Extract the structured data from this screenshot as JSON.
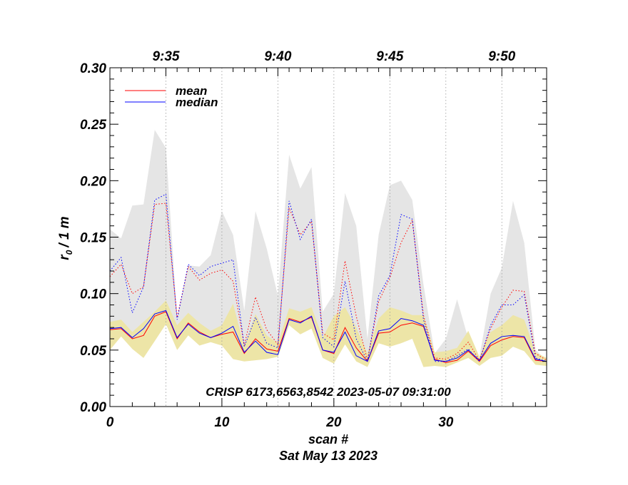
{
  "chart_data": {
    "type": "line",
    "xlabel": "scan #",
    "date_label": "Sat May 13 2023",
    "ylabel_main": "r",
    "ylabel_sub": "0",
    "ylabel_suffix": "/ 1 m",
    "annotation": "CRISP 6173,6563,8542 2023-05-07 09:31:00",
    "xlim": [
      0,
      39
    ],
    "ylim": [
      0,
      0.3
    ],
    "x_ticks": [
      {
        "value": 0,
        "label": "0"
      },
      {
        "value": 10,
        "label": "10"
      },
      {
        "value": 20,
        "label": "20"
      },
      {
        "value": 30,
        "label": "30"
      }
    ],
    "y_ticks": [
      {
        "value": 0.0,
        "label": "0.00"
      },
      {
        "value": 0.05,
        "label": "0.05"
      },
      {
        "value": 0.1,
        "label": "0.10"
      },
      {
        "value": 0.15,
        "label": "0.15"
      },
      {
        "value": 0.2,
        "label": "0.20"
      },
      {
        "value": 0.25,
        "label": "0.25"
      },
      {
        "value": 0.3,
        "label": "0.30"
      }
    ],
    "time_ticks": [
      {
        "value": 5,
        "label": "9:35"
      },
      {
        "value": 15,
        "label": "9:40"
      },
      {
        "value": 25,
        "label": "9:45"
      },
      {
        "value": 35,
        "label": "9:50"
      }
    ],
    "vertical_gridlines": [
      5,
      10,
      15,
      20,
      25,
      30,
      35
    ],
    "legend": [
      {
        "label": "mean",
        "color": "#ff0000"
      },
      {
        "label": "median",
        "color": "#0000ff"
      }
    ],
    "x": [
      0,
      1,
      2,
      3,
      4,
      5,
      6,
      7,
      8,
      9,
      10,
      11,
      12,
      13,
      14,
      15,
      16,
      17,
      18,
      19,
      20,
      21,
      22,
      23,
      24,
      25,
      26,
      27,
      28,
      29,
      30,
      31,
      32,
      33,
      34,
      35,
      36,
      37,
      38,
      39
    ],
    "gray_band": {
      "color": "#e5e5e5",
      "upper": [
        0.157,
        0.149,
        0.178,
        0.179,
        0.245,
        0.229,
        0.078,
        0.125,
        0.124,
        0.134,
        0.173,
        0.152,
        0.085,
        0.173,
        0.14,
        0.098,
        0.223,
        0.193,
        0.212,
        0.084,
        0.1,
        0.189,
        0.16,
        0.06,
        0.152,
        0.196,
        0.2,
        0.183,
        0.108,
        0.047,
        0.06,
        0.095,
        0.06,
        0.044,
        0.1,
        0.123,
        0.182,
        0.145,
        0.05,
        0.041
      ],
      "lower": [
        0.07,
        0.07,
        0.06,
        0.063,
        0.083,
        0.086,
        0.06,
        0.075,
        0.067,
        0.06,
        0.065,
        0.075,
        0.047,
        0.06,
        0.052,
        0.05,
        0.079,
        0.076,
        0.08,
        0.051,
        0.048,
        0.075,
        0.051,
        0.039,
        0.069,
        0.07,
        0.077,
        0.075,
        0.07,
        0.04,
        0.038,
        0.043,
        0.05,
        0.04,
        0.055,
        0.062,
        0.063,
        0.062,
        0.04,
        0.039
      ]
    },
    "yellow_band": {
      "color": "#ede5a7",
      "upper": [
        0.075,
        0.077,
        0.066,
        0.075,
        0.084,
        0.094,
        0.072,
        0.083,
        0.074,
        0.067,
        0.072,
        0.091,
        0.053,
        0.082,
        0.063,
        0.056,
        0.087,
        0.084,
        0.088,
        0.061,
        0.08,
        0.088,
        0.07,
        0.047,
        0.078,
        0.088,
        0.085,
        0.081,
        0.081,
        0.048,
        0.049,
        0.052,
        0.067,
        0.044,
        0.066,
        0.072,
        0.081,
        0.077,
        0.048,
        0.043
      ],
      "lower": [
        0.05,
        0.062,
        0.051,
        0.043,
        0.058,
        0.073,
        0.05,
        0.063,
        0.054,
        0.057,
        0.054,
        0.042,
        0.04,
        0.041,
        0.042,
        0.044,
        0.072,
        0.064,
        0.069,
        0.043,
        0.038,
        0.055,
        0.04,
        0.035,
        0.056,
        0.053,
        0.056,
        0.06,
        0.035,
        0.036,
        0.035,
        0.039,
        0.043,
        0.036,
        0.043,
        0.045,
        0.053,
        0.049,
        0.037,
        0.036
      ]
    },
    "series": [
      {
        "name": "mean",
        "style": "solid",
        "color": "#ff0000",
        "values": [
          0.068,
          0.069,
          0.06,
          0.063,
          0.08,
          0.084,
          0.06,
          0.074,
          0.066,
          0.061,
          0.064,
          0.066,
          0.047,
          0.06,
          0.051,
          0.049,
          0.078,
          0.075,
          0.079,
          0.05,
          0.047,
          0.07,
          0.052,
          0.04,
          0.065,
          0.066,
          0.072,
          0.074,
          0.071,
          0.042,
          0.039,
          0.041,
          0.049,
          0.04,
          0.054,
          0.059,
          0.062,
          0.061,
          0.041,
          0.04
        ]
      },
      {
        "name": "median",
        "style": "solid",
        "color": "#0000ff",
        "values": [
          0.069,
          0.07,
          0.061,
          0.069,
          0.082,
          0.085,
          0.061,
          0.073,
          0.065,
          0.061,
          0.065,
          0.071,
          0.048,
          0.058,
          0.048,
          0.046,
          0.077,
          0.074,
          0.08,
          0.05,
          0.048,
          0.066,
          0.045,
          0.04,
          0.067,
          0.069,
          0.078,
          0.076,
          0.072,
          0.041,
          0.04,
          0.043,
          0.05,
          0.041,
          0.056,
          0.062,
          0.063,
          0.062,
          0.042,
          0.04
        ]
      },
      {
        "name": "mean (dotted)",
        "style": "dotted",
        "color": "#ff0000",
        "values": [
          0.115,
          0.126,
          0.1,
          0.106,
          0.179,
          0.18,
          0.079,
          0.124,
          0.112,
          0.118,
          0.121,
          0.111,
          0.054,
          0.097,
          0.068,
          0.055,
          0.176,
          0.152,
          0.164,
          0.065,
          0.059,
          0.129,
          0.08,
          0.041,
          0.093,
          0.114,
          0.145,
          0.165,
          0.081,
          0.043,
          0.042,
          0.047,
          0.057,
          0.041,
          0.069,
          0.088,
          0.103,
          0.102,
          0.047,
          0.041
        ]
      },
      {
        "name": "median (dotted)",
        "style": "dotted",
        "color": "#0000ff",
        "values": [
          0.12,
          0.132,
          0.083,
          0.106,
          0.183,
          0.188,
          0.077,
          0.126,
          0.116,
          0.124,
          0.127,
          0.13,
          0.053,
          0.079,
          0.056,
          0.052,
          0.182,
          0.148,
          0.166,
          0.061,
          0.053,
          0.111,
          0.06,
          0.04,
          0.098,
          0.116,
          0.17,
          0.166,
          0.077,
          0.04,
          0.04,
          0.045,
          0.051,
          0.04,
          0.072,
          0.09,
          0.09,
          0.099,
          0.043,
          0.04
        ]
      }
    ]
  }
}
